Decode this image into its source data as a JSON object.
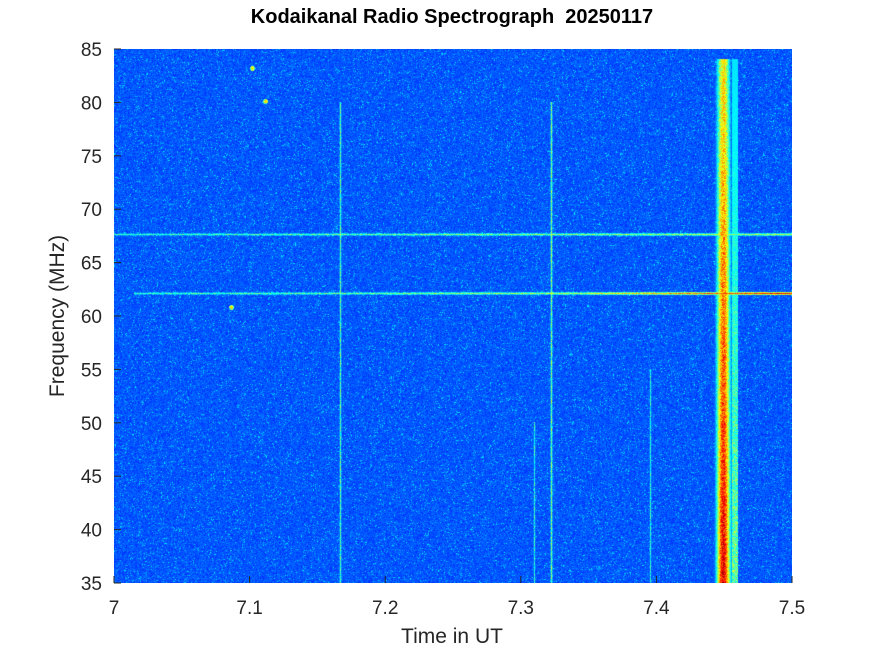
{
  "chart_data": {
    "type": "heatmap",
    "title": "Kodaikanal Radio Spectrograph  20250117",
    "xlabel": "Time in UT",
    "ylabel": "Frequency (MHz)",
    "xlim": [
      7.0,
      7.5
    ],
    "ylim": [
      35,
      85
    ],
    "xticks": [
      7.0,
      7.1,
      7.2,
      7.3,
      7.4,
      7.5
    ],
    "xtick_labels": [
      "7",
      "7.1",
      "7.2",
      "7.3",
      "7.4",
      "7.5"
    ],
    "yticks": [
      35,
      40,
      45,
      50,
      55,
      60,
      65,
      70,
      75,
      80,
      85
    ],
    "ytick_labels": [
      "35",
      "40",
      "45",
      "50",
      "55",
      "60",
      "65",
      "70",
      "75",
      "80",
      "85"
    ],
    "colormap": "jet",
    "background_color": "#0a2aa8",
    "features": {
      "horizontal_lines": [
        {
          "freq_mhz": 67.7,
          "t_start": 7.0,
          "t_end": 7.5,
          "intensity": 0.55
        },
        {
          "freq_mhz": 62.2,
          "t_start": 7.015,
          "t_end": 7.35,
          "intensity": 0.55
        },
        {
          "freq_mhz": 62.2,
          "t_start": 7.35,
          "t_end": 7.5,
          "intensity": 0.88
        }
      ],
      "vertical_lines": [
        {
          "time_ut": 7.167,
          "f_start": 35,
          "f_end": 80,
          "intensity": 0.45
        },
        {
          "time_ut": 7.322,
          "f_start": 35,
          "f_end": 80,
          "intensity": 0.5
        },
        {
          "time_ut": 7.31,
          "f_start": 35,
          "f_end": 50,
          "intensity": 0.4
        },
        {
          "time_ut": 7.395,
          "f_start": 35,
          "f_end": 55,
          "intensity": 0.4
        }
      ],
      "burst": {
        "time_ut": 7.449,
        "width_ut": 0.006,
        "f_start": 35,
        "f_end": 84,
        "intensity": 0.9
      },
      "spots": [
        {
          "time_ut": 7.102,
          "freq_mhz": 83.2
        },
        {
          "time_ut": 7.111,
          "freq_mhz": 80.1
        },
        {
          "time_ut": 7.086,
          "freq_mhz": 60.8
        }
      ]
    }
  }
}
